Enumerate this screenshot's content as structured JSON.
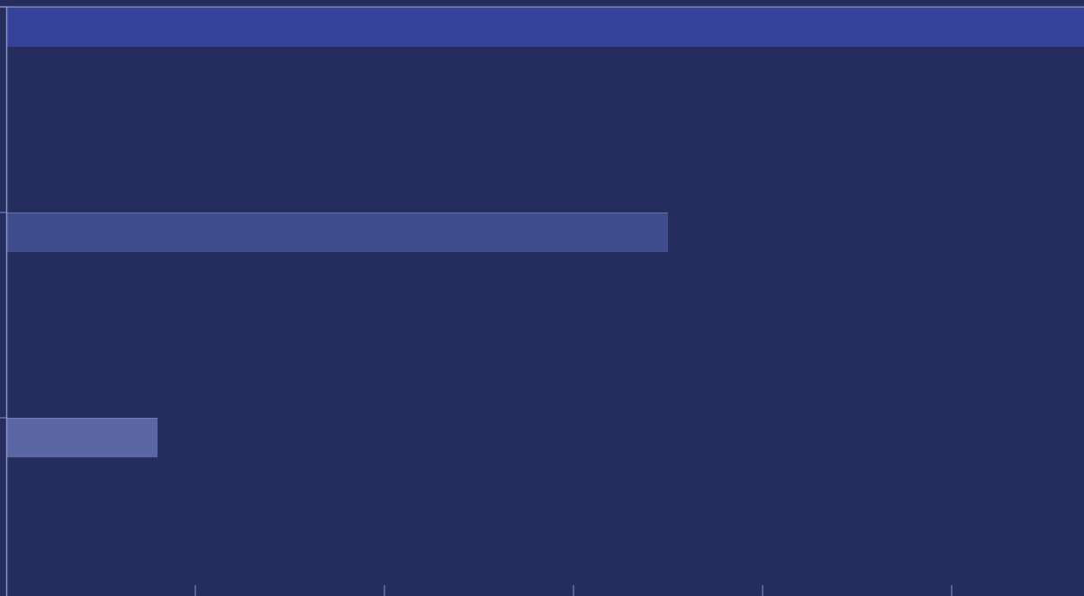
{
  "chart_data": {
    "type": "bar",
    "orientation": "horizontal",
    "categories": [
      null,
      null,
      null
    ],
    "values": [
      6,
      3.5,
      0.8
    ],
    "colors": [
      "#344399",
      "#3f4d8e",
      "#5a66a6"
    ],
    "xlim": [
      0,
      5.7
    ],
    "xticks": [
      1,
      2,
      3,
      4,
      5
    ]
  }
}
